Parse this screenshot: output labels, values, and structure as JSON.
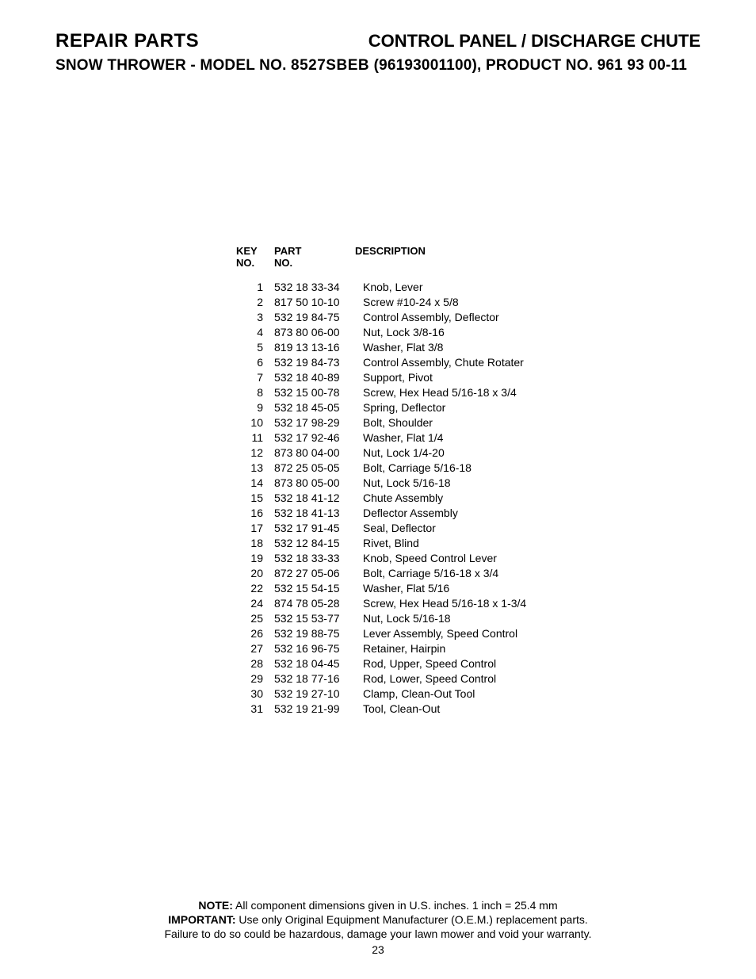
{
  "header": {
    "left": "REPAIR PARTS",
    "right": "CONTROL PANEL / DISCHARGE CHUTE",
    "sub_prefix": "SNOW THROWER - MODEL NO. ",
    "sub_model": "8527SBEB",
    "sub_suffix": " (96193001100), PRODUCT NO. 961 93 00-11"
  },
  "table": {
    "head_key_l1": "KEY",
    "head_key_l2": "NO.",
    "head_part_l1": "PART",
    "head_part_l2": "NO.",
    "head_desc_l1": "",
    "head_desc_l2": "DESCRIPTION",
    "rows": [
      {
        "key": "1",
        "part": "532 18 33-34",
        "desc": "Knob, Lever"
      },
      {
        "key": "2",
        "part": "817 50 10-10",
        "desc": "Screw  #10-24 x 5/8"
      },
      {
        "key": "3",
        "part": "532 19 84-75",
        "desc": "Control Assembly, Deflector"
      },
      {
        "key": "4",
        "part": "873 80 06-00",
        "desc": "Nut, Lock  3/8-16"
      },
      {
        "key": "5",
        "part": "819 13 13-16",
        "desc": "Washer, Flat  3/8"
      },
      {
        "key": "6",
        "part": "532 19 84-73",
        "desc": "Control Assembly, Chute Rotater"
      },
      {
        "key": "7",
        "part": "532 18 40-89",
        "desc": "Support, Pivot"
      },
      {
        "key": "8",
        "part": "532 15 00-78",
        "desc": "Screw, Hex Head  5/16-18 x 3/4"
      },
      {
        "key": "9",
        "part": "532 18 45-05",
        "desc": "Spring, Deflector"
      },
      {
        "key": "10",
        "part": "532 17 98-29",
        "desc": "Bolt, Shoulder"
      },
      {
        "key": "11",
        "part": "532 17 92-46",
        "desc": "Washer, Flat  1/4"
      },
      {
        "key": "12",
        "part": "873 80 04-00",
        "desc": "Nut, Lock  1/4-20"
      },
      {
        "key": "13",
        "part": "872 25 05-05",
        "desc": "Bolt, Carriage  5/16-18"
      },
      {
        "key": "14",
        "part": "873 80 05-00",
        "desc": "Nut, Lock  5/16-18"
      },
      {
        "key": "15",
        "part": "532 18 41-12",
        "desc": "Chute Assembly"
      },
      {
        "key": "16",
        "part": "532 18 41-13",
        "desc": "Deflector Assembly"
      },
      {
        "key": "17",
        "part": "532 17 91-45",
        "desc": "Seal, Deflector"
      },
      {
        "key": "18",
        "part": "532 12 84-15",
        "desc": "Rivet, Blind"
      },
      {
        "key": "19",
        "part": "532 18 33-33",
        "desc": "Knob, Speed Control Lever"
      },
      {
        "key": "20",
        "part": "872 27 05-06",
        "desc": "Bolt, Carriage  5/16-18 x 3/4"
      },
      {
        "key": "22",
        "part": "532 15 54-15",
        "desc": "Washer, Flat 5/16"
      },
      {
        "key": "24",
        "part": "874 78 05-28",
        "desc": "Screw, Hex Head  5/16-18 x 1-3/4"
      },
      {
        "key": "25",
        "part": "532 15 53-77",
        "desc": "Nut, Lock  5/16-18"
      },
      {
        "key": "26",
        "part": "532 19 88-75",
        "desc": "Lever Assembly, Speed Control"
      },
      {
        "key": "27",
        "part": "532 16 96-75",
        "desc": "Retainer, Hairpin"
      },
      {
        "key": "28",
        "part": "532 18 04-45",
        "desc": "Rod, Upper, Speed Control"
      },
      {
        "key": "29",
        "part": "532 18 77-16",
        "desc": "Rod, Lower, Speed Control"
      },
      {
        "key": "30",
        "part": "532 19 27-10",
        "desc": "Clamp, Clean-Out Tool"
      },
      {
        "key": "31",
        "part": "532 19 21-99",
        "desc": "Tool, Clean-Out"
      }
    ]
  },
  "footer": {
    "note_label": "NOTE:",
    "note_text": "  All component dimensions given in U.S. inches.    1 inch = 25.4 mm",
    "important_label": "IMPORTANT:",
    "important_text": " Use only Original Equipment Manufacturer (O.E.M.) replacement parts.",
    "warning_text": "Failure to do so could be hazardous, damage your lawn mower and void your warranty.",
    "page_number": "23"
  },
  "style": {
    "background_color": "#ffffff",
    "text_color": "#000000",
    "header_left_fontsize": 24,
    "header_right_fontsize": 22,
    "subheader_fontsize": 19,
    "table_head_fontsize": 13,
    "table_body_fontsize": 14,
    "footer_fontsize": 14
  }
}
